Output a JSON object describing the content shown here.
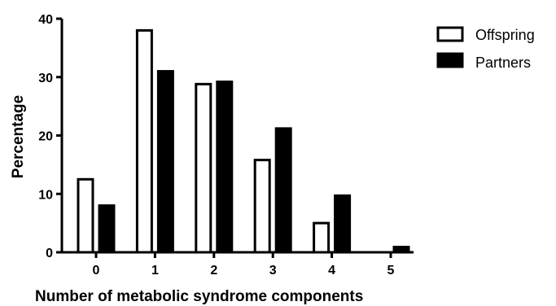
{
  "chart_data": {
    "type": "bar",
    "xlabel": "Number of metabolic syndrome components",
    "ylabel": "Percentage",
    "categories": [
      "0",
      "1",
      "2",
      "3",
      "4",
      "5"
    ],
    "ylim": [
      0,
      40
    ],
    "yticks": [
      0,
      10,
      20,
      30,
      40
    ],
    "series": [
      {
        "name": "Offspring",
        "values": [
          12.5,
          38.0,
          28.8,
          15.8,
          5.0,
          0
        ],
        "fill": "#ffffff",
        "stroke": "#000000"
      },
      {
        "name": "Partners",
        "values": [
          8.0,
          31.0,
          29.2,
          21.2,
          9.7,
          0.9
        ],
        "fill": "#000000",
        "stroke": "#000000"
      }
    ],
    "legend_position": "top-right",
    "grid": false
  }
}
